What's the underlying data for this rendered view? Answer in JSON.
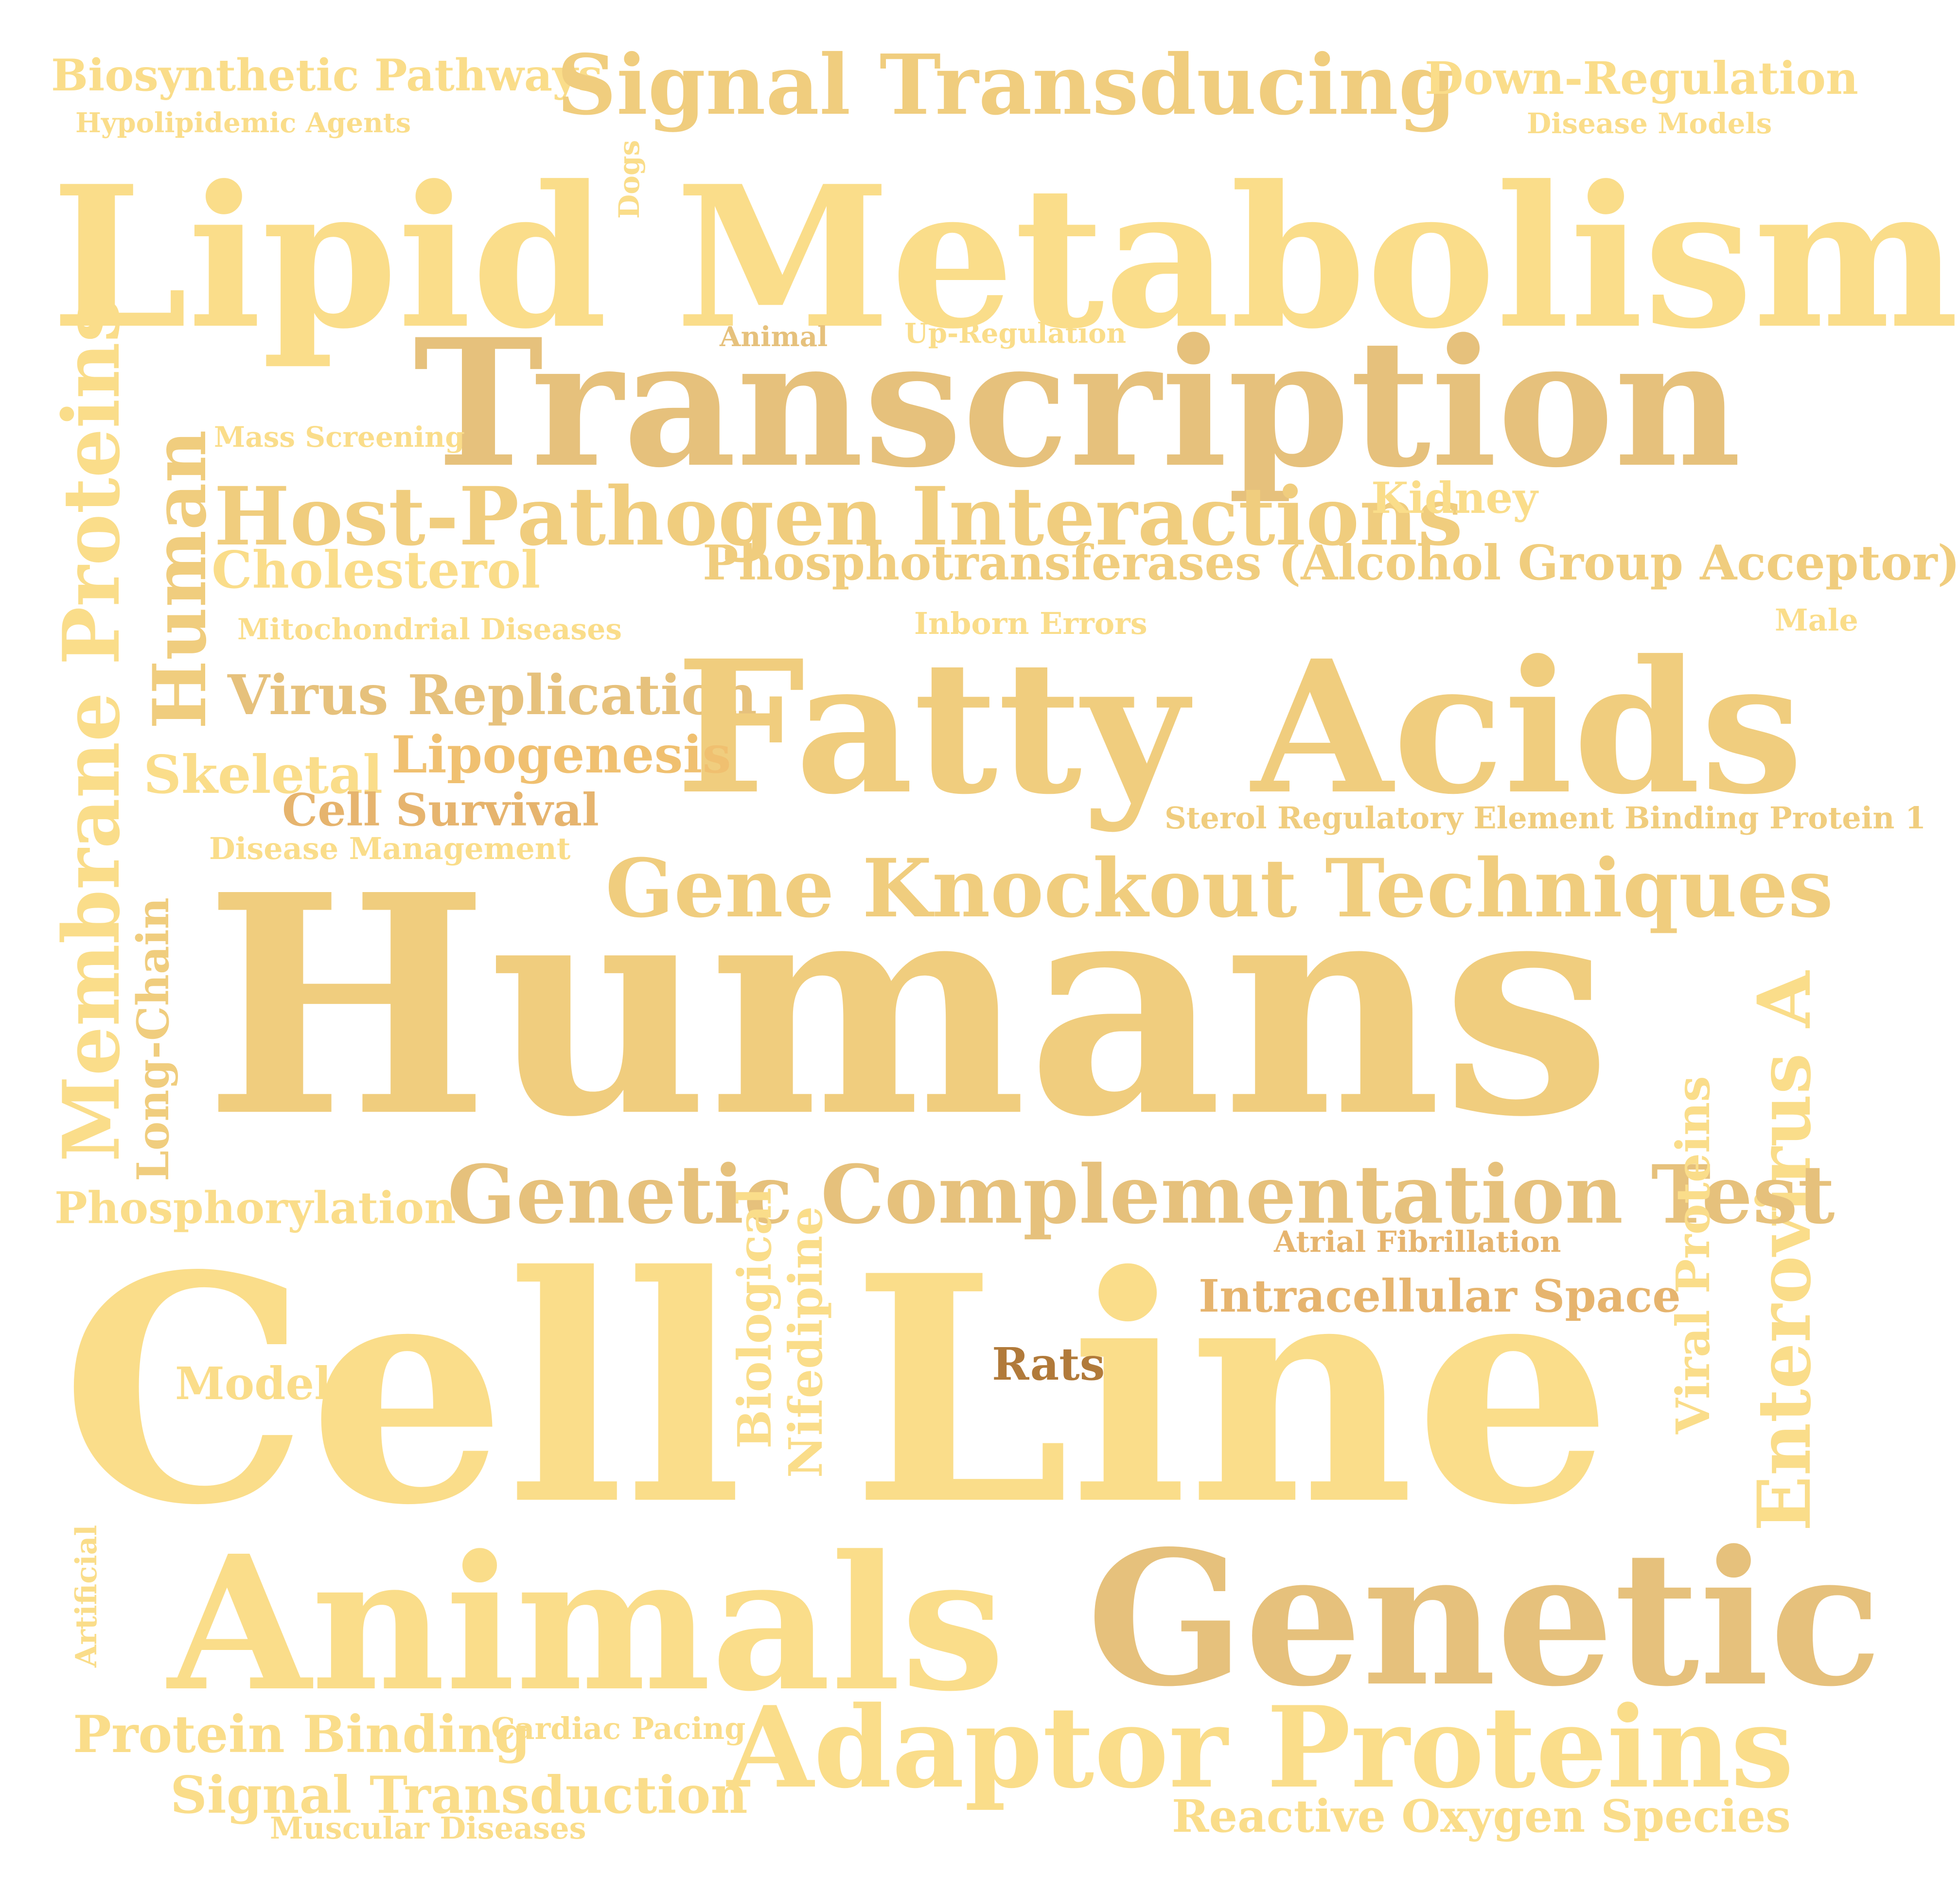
{
  "palette": {
    "light": "#fadd8a",
    "mid": "#f0cd7e",
    "tan": "#e6c17c",
    "orange": "#e6b46e",
    "brown": "#b17a3a"
  },
  "words": {
    "biosynthetic_pathways": "Biosynthetic Pathways",
    "signal_transducing": "Signal Transducing",
    "down_regulation": "Down-Regulation",
    "hypolipidemic_agents": "Hypolipidemic Agents",
    "disease_models": "Disease Models",
    "dogs": "Dogs",
    "lipid_metabolism": "Lipid Metabolism",
    "animal": "Animal",
    "up_regulation": "Up-Regulation",
    "transcription": "Transcription",
    "mass_screening": "Mass Screening",
    "membrane_proteins": "Membrane Proteins",
    "human": "Human",
    "host_pathogen": "Host-Pathogen Interactions",
    "kidney": "Kidney",
    "cholesterol": "Cholesterol",
    "phosphotransferases": "Phosphotransferases (Alcohol Group Acceptor)",
    "mitochondrial_diseases": "Mitochondrial Diseases",
    "inborn_errors": "Inborn Errors",
    "male": "Male",
    "virus_replication": "Virus Replication",
    "fatty_acids": "Fatty Acids",
    "lipogenesis": "Lipogenesis",
    "skeletal": "Skeletal",
    "cell_survival": "Cell Survival",
    "srebp1": "Sterol Regulatory Element Binding Protein 1",
    "disease_management": "Disease Management",
    "long_chain": "Long-Chain",
    "gene_knockout": "Gene Knockout Techniques",
    "humans": "Humans",
    "enterovirus_a": "Enterovirus A",
    "genetic_complementation": "Genetic Complementation Test",
    "phosphorylation": "Phosphorylation",
    "viral_proteins": "Viral Proteins",
    "atrial_fibrillation": "Atrial Fibrillation",
    "biological": "Biological",
    "nifedipine": "Nifedipine",
    "intracellular_space": "Intracellular Space",
    "cell_line": "Cell Line",
    "models": "Models",
    "rats": "Rats",
    "artificial": "Artificial",
    "animals": "Animals",
    "genetic": "Genetic",
    "protein_binding": "Protein Binding",
    "cardiac_pacing": "Cardiac Pacing",
    "adaptor_proteins": "Adaptor Proteins",
    "signal_transduction": "Signal Transduction",
    "muscular_diseases": "Muscular Diseases",
    "reactive_oxygen_species": "Reactive Oxygen Species"
  }
}
